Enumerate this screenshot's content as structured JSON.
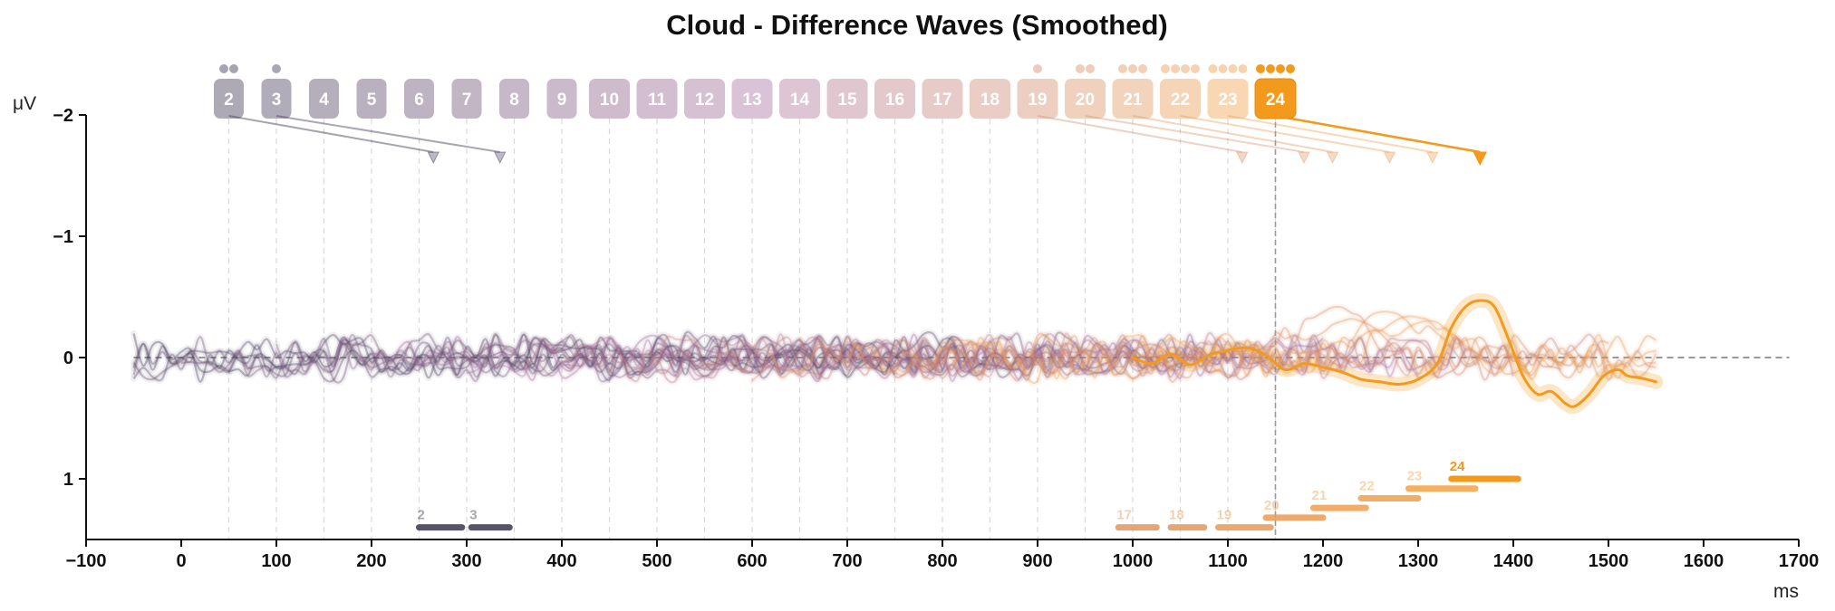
{
  "chart_data": {
    "type": "line",
    "title": "Cloud - Difference Waves (Smoothed)",
    "ylabel": "μV",
    "xlabel": "ms",
    "xlim": [
      -100,
      1700
    ],
    "ylim": [
      1.5,
      -2
    ],
    "y_inverted": true,
    "xticks": [
      -100,
      0,
      100,
      200,
      300,
      400,
      500,
      600,
      700,
      800,
      900,
      1000,
      1100,
      1200,
      1300,
      1400,
      1500,
      1600,
      1700
    ],
    "yticks": [
      -2,
      -1,
      0,
      1
    ],
    "x_tick_labels": [
      "−100",
      "0",
      "100",
      "200",
      "300",
      "400",
      "500",
      "600",
      "700",
      "800",
      "900",
      "1000",
      "1100",
      "1200",
      "1300",
      "1400",
      "1500",
      "1600",
      "1700"
    ],
    "y_tick_labels": [
      "−2",
      "−1",
      "0",
      "1"
    ],
    "reference_lines": {
      "zero_y": 0,
      "vertical_x": 1150
    },
    "grid": false,
    "colors": {
      "start": "#3b3552",
      "mid": "#a8709e",
      "end": "#f7a443",
      "highlight": "#f39a1c",
      "axis": "#111111"
    },
    "series": [
      {
        "label": "2",
        "onset_ms": 50,
        "peak_ms": 265,
        "dots": 2,
        "end_ms": 750
      },
      {
        "label": "3",
        "onset_ms": 100,
        "peak_ms": 335,
        "dots": 1,
        "end_ms": 800
      },
      {
        "label": "4",
        "onset_ms": 150,
        "dots": 0,
        "end_ms": 850
      },
      {
        "label": "5",
        "onset_ms": 200,
        "dots": 0,
        "end_ms": 900
      },
      {
        "label": "6",
        "onset_ms": 250,
        "dots": 0,
        "end_ms": 950
      },
      {
        "label": "7",
        "onset_ms": 300,
        "dots": 0,
        "end_ms": 1000
      },
      {
        "label": "8",
        "onset_ms": 350,
        "dots": 0,
        "end_ms": 1050
      },
      {
        "label": "9",
        "onset_ms": 400,
        "dots": 0,
        "end_ms": 1100
      },
      {
        "label": "10",
        "onset_ms": 450,
        "dots": 0,
        "end_ms": 1150
      },
      {
        "label": "11",
        "onset_ms": 500,
        "dots": 0,
        "end_ms": 1200
      },
      {
        "label": "12",
        "onset_ms": 550,
        "dots": 0,
        "end_ms": 1250
      },
      {
        "label": "13",
        "onset_ms": 600,
        "dots": 0,
        "end_ms": 1300
      },
      {
        "label": "14",
        "onset_ms": 650,
        "dots": 0,
        "end_ms": 1350
      },
      {
        "label": "15",
        "onset_ms": 700,
        "dots": 0,
        "end_ms": 1400
      },
      {
        "label": "16",
        "onset_ms": 750,
        "dots": 0,
        "end_ms": 1450
      },
      {
        "label": "17",
        "onset_ms": 800,
        "dots": 0,
        "end_ms": 1500
      },
      {
        "label": "18",
        "onset_ms": 850,
        "dots": 0,
        "end_ms": 1500
      },
      {
        "label": "19",
        "onset_ms": 900,
        "peak_ms": 1115,
        "dots": 1,
        "end_ms": 1550
      },
      {
        "label": "20",
        "onset_ms": 950,
        "peak_ms": 1180,
        "dots": 2,
        "end_ms": 1550
      },
      {
        "label": "21",
        "onset_ms": 1000,
        "peak_ms": 1210,
        "dots": 3,
        "end_ms": 1550
      },
      {
        "label": "22",
        "onset_ms": 1050,
        "peak_ms": 1270,
        "dots": 4,
        "end_ms": 1550
      },
      {
        "label": "23",
        "onset_ms": 1100,
        "peak_ms": 1315,
        "dots": 4,
        "end_ms": 1550
      },
      {
        "label": "24",
        "onset_ms": 1150,
        "peak_ms": 1365,
        "dots": 4,
        "end_ms": 1550,
        "highlight": true
      }
    ],
    "significance_segments": [
      {
        "label": "2",
        "x0": 250,
        "x1": 295,
        "y": 1.4
      },
      {
        "label": "3",
        "x0": 305,
        "x1": 345,
        "y": 1.4
      },
      {
        "label": "17",
        "x0": 985,
        "x1": 1025,
        "y": 1.4
      },
      {
        "label": "18",
        "x0": 1040,
        "x1": 1075,
        "y": 1.4
      },
      {
        "label": "19",
        "x0": 1090,
        "x1": 1145,
        "y": 1.4
      },
      {
        "label": "20",
        "x0": 1140,
        "x1": 1200,
        "y": 1.32
      },
      {
        "label": "21",
        "x0": 1190,
        "x1": 1245,
        "y": 1.24
      },
      {
        "label": "22",
        "x0": 1240,
        "x1": 1300,
        "y": 1.16
      },
      {
        "label": "23",
        "x0": 1290,
        "x1": 1360,
        "y": 1.08
      },
      {
        "label": "24",
        "x0": 1335,
        "x1": 1405,
        "y": 1.0
      }
    ],
    "highlight_wave": [
      [
        1000,
        0.0
      ],
      [
        1020,
        0.05
      ],
      [
        1040,
        -0.03
      ],
      [
        1060,
        0.06
      ],
      [
        1080,
        -0.02
      ],
      [
        1100,
        -0.06
      ],
      [
        1120,
        -0.08
      ],
      [
        1140,
        -0.02
      ],
      [
        1160,
        0.1
      ],
      [
        1180,
        0.05
      ],
      [
        1200,
        0.08
      ],
      [
        1220,
        0.12
      ],
      [
        1240,
        0.18
      ],
      [
        1260,
        0.2
      ],
      [
        1280,
        0.22
      ],
      [
        1300,
        0.18
      ],
      [
        1320,
        0.05
      ],
      [
        1335,
        -0.25
      ],
      [
        1350,
        -0.42
      ],
      [
        1365,
        -0.47
      ],
      [
        1380,
        -0.42
      ],
      [
        1395,
        -0.15
      ],
      [
        1410,
        0.15
      ],
      [
        1425,
        0.3
      ],
      [
        1440,
        0.28
      ],
      [
        1455,
        0.38
      ],
      [
        1465,
        0.4
      ],
      [
        1480,
        0.3
      ],
      [
        1495,
        0.15
      ],
      [
        1510,
        0.1
      ],
      [
        1520,
        0.15
      ],
      [
        1535,
        0.17
      ],
      [
        1550,
        0.2
      ]
    ],
    "faint_peaks": [
      {
        "series": "19",
        "x": 1215,
        "y": -0.42
      },
      {
        "series": "20",
        "x": 1230,
        "y": -0.32
      },
      {
        "series": "21",
        "x": 1265,
        "y": -0.38
      },
      {
        "series": "22",
        "x": 1290,
        "y": -0.34
      },
      {
        "series": "23",
        "x": 1310,
        "y": -0.3
      }
    ]
  }
}
